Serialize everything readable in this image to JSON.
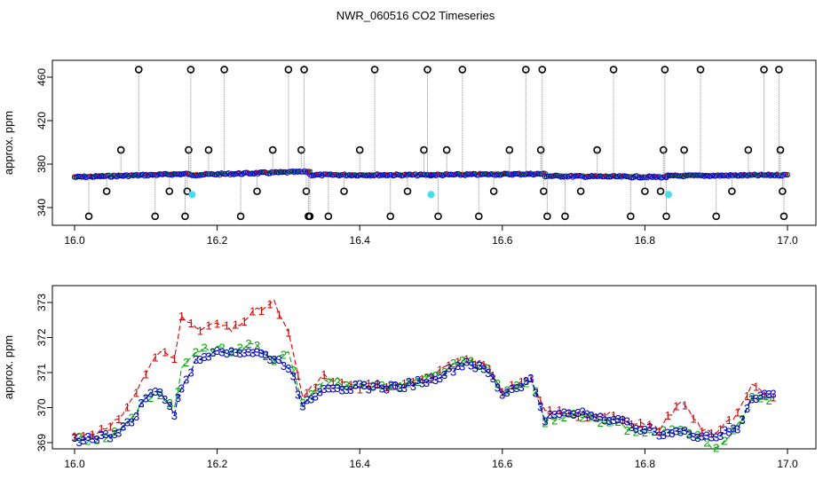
{
  "chart_data": [
    {
      "type": "scatter",
      "title": "NWR_060516  CO2 Timeseries",
      "xlabel": "",
      "ylabel": "approx. ppm",
      "xlim": [
        16.0,
        17.0
      ],
      "ylim": [
        325,
        475
      ],
      "x_ticks": [
        "16.0",
        "16.2",
        "16.4",
        "16.6",
        "16.8",
        "17.0"
      ],
      "y_ticks": [
        "340",
        "380",
        "420",
        "460"
      ],
      "series": [
        {
          "marker": "open-circle",
          "color": "#000000",
          "connector": "grey dotted vertical",
          "points": [
            [
              16.02,
              332
            ],
            [
              16.045,
              355
            ],
            [
              16.065,
              393
            ],
            [
              16.09,
              467
            ],
            [
              16.113,
              332
            ],
            [
              16.133,
              355
            ],
            [
              16.155,
              332
            ],
            [
              16.158,
              355
            ],
            [
              16.16,
              393
            ],
            [
              16.163,
              467
            ],
            [
              16.188,
              393
            ],
            [
              16.21,
              467
            ],
            [
              16.233,
              332
            ],
            [
              16.256,
              355
            ],
            [
              16.278,
              393
            ],
            [
              16.3,
              467
            ],
            [
              16.318,
              393
            ],
            [
              16.322,
              467
            ],
            [
              16.325,
              355
            ],
            [
              16.328,
              332
            ],
            [
              16.33,
              332
            ],
            [
              16.356,
              332
            ],
            [
              16.378,
              355
            ],
            [
              16.4,
              393
            ],
            [
              16.421,
              467
            ],
            [
              16.443,
              332
            ],
            [
              16.467,
              355
            ],
            [
              16.49,
              393
            ],
            [
              16.495,
              467
            ],
            [
              16.51,
              332
            ],
            [
              16.522,
              393
            ],
            [
              16.544,
              467
            ],
            [
              16.567,
              332
            ],
            [
              16.588,
              355
            ],
            [
              16.61,
              393
            ],
            [
              16.633,
              467
            ],
            [
              16.654,
              393
            ],
            [
              16.656,
              467
            ],
            [
              16.658,
              355
            ],
            [
              16.663,
              332
            ],
            [
              16.688,
              332
            ],
            [
              16.71,
              355
            ],
            [
              16.733,
              393
            ],
            [
              16.756,
              467
            ],
            [
              16.78,
              332
            ],
            [
              16.8,
              355
            ],
            [
              16.822,
              355
            ],
            [
              16.826,
              393
            ],
            [
              16.828,
              467
            ],
            [
              16.83,
              332
            ],
            [
              16.855,
              393
            ],
            [
              16.878,
              467
            ],
            [
              16.9,
              332
            ],
            [
              16.922,
              355
            ],
            [
              16.945,
              393
            ],
            [
              16.967,
              467
            ],
            [
              16.988,
              467
            ],
            [
              16.99,
              393
            ],
            [
              16.993,
              355
            ],
            [
              16.995,
              332
            ]
          ]
        },
        {
          "marker": "filled-circle",
          "color": "#44ddee",
          "points": [
            [
              16.165,
              352
            ],
            [
              16.5,
              352
            ],
            [
              16.833,
              352
            ]
          ]
        }
      ],
      "baseline_segments": [
        {
          "x": [
            16.0,
            16.16
          ],
          "y": [
            368,
            371
          ]
        },
        {
          "x": [
            16.16,
            16.33
          ],
          "y": [
            370,
            373
          ]
        },
        {
          "x": [
            16.33,
            16.5
          ],
          "y": [
            370,
            370
          ]
        },
        {
          "x": [
            16.5,
            16.66
          ],
          "y": [
            370,
            371
          ]
        },
        {
          "x": [
            16.66,
            16.83
          ],
          "y": [
            369,
            368
          ]
        },
        {
          "x": [
            16.83,
            17.0
          ],
          "y": [
            369,
            370
          ]
        }
      ],
      "series_colors": [
        "#dd0000",
        "#00aa00",
        "#0000cc"
      ]
    },
    {
      "type": "line",
      "title": "",
      "xlabel": "",
      "ylabel": "approx. ppm",
      "xlim": [
        16.0,
        17.0
      ],
      "ylim": [
        368.6,
        373.4
      ],
      "x_ticks": [
        "16.0",
        "16.2",
        "16.4",
        "16.6",
        "16.8",
        "17.0"
      ],
      "y_ticks": [
        "369",
        "370",
        "371",
        "372",
        "373"
      ],
      "x": [
        16.0,
        16.05,
        16.08,
        16.1,
        16.12,
        16.14,
        16.15,
        16.17,
        16.2,
        16.22,
        16.25,
        16.28,
        16.3,
        16.32,
        16.35,
        16.4,
        16.45,
        16.5,
        16.55,
        16.58,
        16.6,
        16.62,
        16.64,
        16.66,
        16.7,
        16.75,
        16.8,
        16.82,
        16.85,
        16.88,
        16.9,
        16.93,
        16.95,
        16.98
      ],
      "series": [
        {
          "symbol": "1",
          "color": "#dd0000",
          "values": [
            369.2,
            369.4,
            370.2,
            371.0,
            371.6,
            371.4,
            372.7,
            372.2,
            372.4,
            372.2,
            372.7,
            373.0,
            372.1,
            370.3,
            370.9,
            370.6,
            370.7,
            370.9,
            371.4,
            371.2,
            370.5,
            370.7,
            370.8,
            369.9,
            369.8,
            369.8,
            369.5,
            369.4,
            370.2,
            369.4,
            369.3,
            369.8,
            370.6,
            370.3
          ]
        },
        {
          "symbol": "2",
          "color": "#00aa00",
          "values": [
            369.1,
            369.2,
            369.7,
            370.3,
            370.4,
            370.0,
            371.1,
            371.6,
            371.7,
            371.6,
            371.8,
            371.4,
            371.6,
            370.1,
            370.8,
            370.6,
            370.6,
            370.9,
            371.4,
            371.1,
            370.4,
            370.6,
            370.8,
            369.6,
            369.8,
            369.6,
            369.3,
            369.3,
            369.4,
            369.1,
            368.8,
            369.5,
            370.3,
            370.2
          ]
        },
        {
          "symbol": "3",
          "color": "#0000cc",
          "values": [
            369.1,
            369.2,
            369.6,
            370.3,
            370.5,
            369.8,
            370.6,
            371.3,
            371.7,
            371.6,
            371.6,
            371.4,
            371.2,
            370.1,
            370.6,
            370.6,
            370.6,
            370.8,
            371.3,
            371.0,
            370.4,
            370.6,
            370.8,
            369.7,
            369.9,
            369.7,
            369.4,
            369.3,
            369.3,
            369.2,
            369.2,
            369.4,
            370.3,
            370.4
          ]
        }
      ]
    }
  ]
}
